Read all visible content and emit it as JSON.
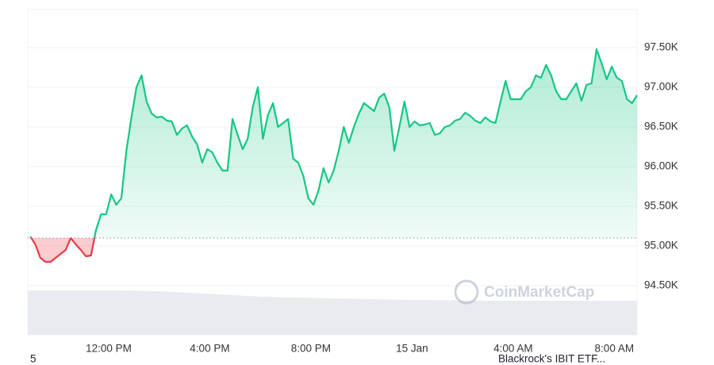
{
  "chart_data": {
    "type": "line",
    "x": [
      8.9,
      9.1,
      9.3,
      9.5,
      9.7,
      9.9,
      10.1,
      10.3,
      10.5,
      10.7,
      10.9,
      11.1,
      11.3,
      11.5,
      11.7,
      11.9,
      12.1,
      12.3,
      12.5,
      12.7,
      12.9,
      13.1,
      13.3,
      13.5,
      13.7,
      13.9,
      14.1,
      14.3,
      14.5,
      14.7,
      14.9,
      15.1,
      15.3,
      15.5,
      15.7,
      15.9,
      16.1,
      16.3,
      16.5,
      16.7,
      16.9,
      17.1,
      17.3,
      17.5,
      17.7,
      17.9,
      18.1,
      18.3,
      18.5,
      18.7,
      18.9,
      19.1,
      19.3,
      19.5,
      19.7,
      19.9,
      20.1,
      20.3,
      20.5,
      20.7,
      20.9,
      21.1,
      21.3,
      21.5,
      21.7,
      21.9,
      22.1,
      22.3,
      22.5,
      22.7,
      22.9,
      23.1,
      23.3,
      23.5,
      23.7,
      23.9,
      24.1,
      24.3,
      24.5,
      24.7,
      24.9,
      25.1,
      25.3,
      25.5,
      25.7,
      25.9,
      26.1,
      26.3,
      26.5,
      26.7,
      26.9,
      27.1,
      27.3,
      27.5,
      27.7,
      27.9,
      28.1,
      28.3,
      28.5,
      28.7,
      28.9,
      29.1,
      29.3,
      29.5,
      29.7,
      29.9,
      30.1,
      30.3,
      30.5,
      30.7,
      30.9,
      31.1,
      31.3,
      31.5,
      31.7,
      31.9,
      32.1,
      32.3,
      32.5,
      32.7,
      32.9
    ],
    "values": [
      95120,
      95020,
      94850,
      94800,
      94800,
      94850,
      94900,
      94950,
      95100,
      95020,
      94950,
      94870,
      94880,
      95200,
      95400,
      95400,
      95650,
      95520,
      95600,
      96200,
      96620,
      97000,
      97150,
      96820,
      96670,
      96620,
      96630,
      96580,
      96570,
      96400,
      96480,
      96520,
      96380,
      96280,
      96050,
      96220,
      96180,
      96050,
      95950,
      95950,
      96600,
      96400,
      96220,
      96350,
      96750,
      97000,
      96350,
      96650,
      96800,
      96500,
      96550,
      96600,
      96100,
      96050,
      95880,
      95600,
      95520,
      95700,
      95980,
      95800,
      95950,
      96200,
      96500,
      96300,
      96500,
      96670,
      96800,
      96750,
      96700,
      96870,
      96920,
      96750,
      96200,
      96500,
      96820,
      96500,
      96570,
      96520,
      96530,
      96550,
      96400,
      96420,
      96500,
      96520,
      96580,
      96600,
      96680,
      96640,
      96580,
      96550,
      96620,
      96570,
      96550,
      96820,
      97080,
      96850,
      96850,
      96850,
      96950,
      97000,
      97150,
      97120,
      97280,
      97150,
      96950,
      96850,
      96850,
      96950,
      97050,
      96830,
      97030,
      97050,
      97480,
      97300,
      97100,
      97260,
      97120,
      97080,
      96850,
      96800,
      96900
    ],
    "baseline": 95100,
    "color_up": "#16c784",
    "color_down": "#ea3943",
    "xlim": [
      8.8,
      32.9
    ],
    "xticks": [
      {
        "value": 12,
        "label": "12:00 PM"
      },
      {
        "value": 16,
        "label": "4:00 PM"
      },
      {
        "value": 20,
        "label": "8:00 PM"
      },
      {
        "value": 24,
        "label": "15 Jan"
      },
      {
        "value": 28,
        "label": "4:00 AM"
      },
      {
        "value": 32,
        "label": "8:00 AM"
      }
    ],
    "ylim": [
      93880,
      97980
    ],
    "yticks": [
      {
        "value": 94500,
        "label": "94.50K"
      },
      {
        "value": 95000,
        "label": "95.00K"
      },
      {
        "value": 95500,
        "label": "95.50K"
      },
      {
        "value": 96000,
        "label": "96.00K"
      },
      {
        "value": 96500,
        "label": "96.50K"
      },
      {
        "value": 97000,
        "label": "97.00K"
      },
      {
        "value": 97500,
        "label": "97.50K"
      }
    ],
    "grid": true,
    "watermark": "CoinMarketCap",
    "footer_left": "5",
    "footer_right": "Blackrock's IBIT ETF..."
  }
}
